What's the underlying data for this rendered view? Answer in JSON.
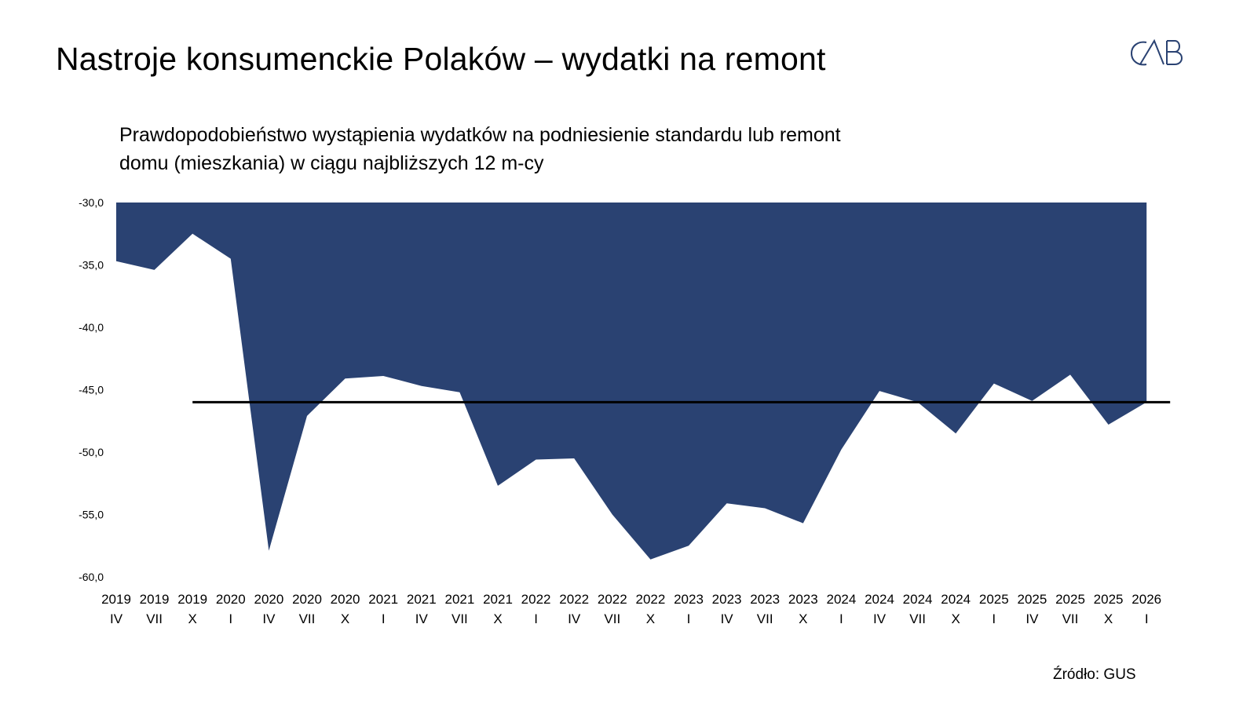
{
  "title": "Nastroje konsumenckie Polaków – wydatki na remont",
  "subtitle_line1": "Prawdopodobieństwo wystąpienia wydatków na podniesienie standardu lub remont",
  "subtitle_line2": "domu (mieszkania) w ciągu najbliższych 12 m-cy",
  "source": "Źródło: GUS",
  "logo_text": "CAB",
  "colors": {
    "area": "#2a4272",
    "reference_line": "#000000"
  },
  "chart_data": {
    "type": "area",
    "title": "Prawdopodobieństwo wystąpienia wydatków na podniesienie standardu lub remont domu (mieszkania) w ciągu najbliższych 12 m-cy",
    "xlabel": "",
    "ylabel": "",
    "ylim": [
      -60,
      -30
    ],
    "yticks": [
      "-30,0",
      "-35,0",
      "-40,0",
      "-45,0",
      "-50,0",
      "-55,0",
      "-60,0"
    ],
    "ytick_values": [
      -30,
      -35,
      -40,
      -45,
      -50,
      -55,
      -60
    ],
    "grid": false,
    "legend": "none",
    "categories": [
      [
        "2019",
        "IV"
      ],
      [
        "2019",
        "VII"
      ],
      [
        "2019",
        "X"
      ],
      [
        "2020",
        "I"
      ],
      [
        "2020",
        "IV"
      ],
      [
        "2020",
        "VII"
      ],
      [
        "2020",
        "X"
      ],
      [
        "2021",
        "I"
      ],
      [
        "2021",
        "IV"
      ],
      [
        "2021",
        "VII"
      ],
      [
        "2021",
        "X"
      ],
      [
        "2022",
        "I"
      ],
      [
        "2022",
        "IV"
      ],
      [
        "2022",
        "VII"
      ],
      [
        "2022",
        "X"
      ],
      [
        "2023",
        "I"
      ],
      [
        "2023",
        "IV"
      ],
      [
        "2023",
        "VII"
      ],
      [
        "2023",
        "X"
      ],
      [
        "2024",
        "I"
      ],
      [
        "2024",
        "IV"
      ],
      [
        "2024",
        "VII"
      ],
      [
        "2024",
        "X"
      ],
      [
        "2025",
        "I"
      ],
      [
        "2025",
        "IV"
      ],
      [
        "2025",
        "VII"
      ],
      [
        "2025",
        "X"
      ],
      [
        "2026",
        "I"
      ]
    ],
    "values": [
      -34.7,
      -35.4,
      -32.5,
      -34.5,
      -57.9,
      -47.1,
      -44.1,
      -43.9,
      -44.7,
      -45.2,
      -52.7,
      -50.6,
      -50.5,
      -55.0,
      -58.6,
      -57.5,
      -54.1,
      -54.5,
      -55.7,
      -49.8,
      -45.1,
      -46.0,
      -48.5,
      -44.5,
      -45.9,
      -43.8,
      -47.8,
      -46.0
    ],
    "reference_line": {
      "value": -46.0,
      "from_index": 2,
      "extends_past_last": true
    }
  }
}
